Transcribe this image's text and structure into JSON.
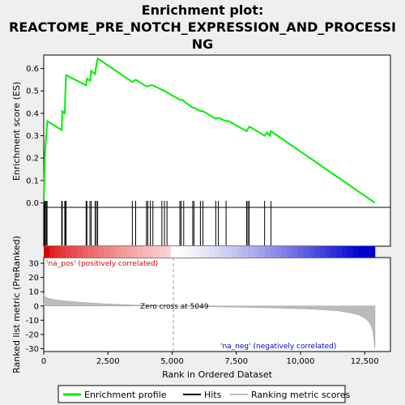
{
  "chart_data": {
    "type": "line",
    "title_lines": [
      "Enrichment plot:",
      "REACTOME_PRE_NOTCH_EXPRESSION_AND_PROCESSI",
      "NG"
    ],
    "top_panel": {
      "ylabel": "Enrichment score (ES)",
      "ylim": [
        -0.02,
        0.66
      ],
      "yticks": [
        "0.0",
        "0.1",
        "0.2",
        "0.3",
        "0.4",
        "0.5",
        "0.6"
      ],
      "ytick_values": [
        0.0,
        0.1,
        0.2,
        0.3,
        0.4,
        0.5,
        0.6
      ],
      "series": {
        "name": "Enrichment profile",
        "color": "#00ee00",
        "x": [
          0,
          40,
          90,
          140,
          700,
          720,
          820,
          840,
          870,
          1650,
          1680,
          1800,
          1850,
          2000,
          2050,
          2100,
          3450,
          3580,
          4000,
          4150,
          4250,
          4600,
          4700,
          5000,
          5300,
          5400,
          5500,
          5800,
          5850,
          6100,
          6200,
          6700,
          6800,
          7000,
          7100,
          7200,
          7900,
          8000,
          8100,
          8600,
          8700,
          8800,
          8850,
          12900
        ],
        "y": [
          0.0,
          0.2,
          0.29,
          0.365,
          0.325,
          0.41,
          0.4,
          0.49,
          0.57,
          0.525,
          0.555,
          0.545,
          0.59,
          0.575,
          0.615,
          0.645,
          0.54,
          0.55,
          0.52,
          0.525,
          0.525,
          0.505,
          0.5,
          0.48,
          0.46,
          0.46,
          0.45,
          0.425,
          0.425,
          0.41,
          0.41,
          0.375,
          0.38,
          0.37,
          0.365,
          0.365,
          0.32,
          0.34,
          0.335,
          0.3,
          0.315,
          0.3,
          0.32,
          0.0
        ]
      }
    },
    "hits": [
      30,
      60,
      100,
      130,
      700,
      720,
      820,
      840,
      870,
      1650,
      1680,
      1800,
      1850,
      2000,
      2050,
      2100,
      3450,
      3580,
      4000,
      4050,
      4150,
      4250,
      4600,
      4700,
      4800,
      5300,
      5350,
      5450,
      5800,
      5850,
      6100,
      6200,
      6700,
      6800,
      7100,
      7900,
      7950,
      8000,
      8600,
      8850
    ],
    "bottom_panel": {
      "ylabel": "Ranked list metric (PreRanked)",
      "xlabel": "Rank in Ordered Dataset",
      "ylim": [
        -32,
        34
      ],
      "yticks": [
        "30",
        "20",
        "10",
        "0",
        "-10",
        "-20",
        "-30"
      ],
      "ytick_values": [
        30,
        20,
        10,
        0,
        -10,
        -20,
        -30
      ],
      "xticks": [
        "0",
        "2,500",
        "5,000",
        "7,500",
        "10,000",
        "12,500"
      ],
      "xtick_values": [
        0,
        2500,
        5000,
        7500,
        10000,
        12500
      ],
      "xlim": [
        0,
        13500
      ],
      "n_genes": 12900,
      "metric_curve": {
        "x": [
          0,
          50,
          200,
          500,
          1000,
          1500,
          2000,
          2500,
          3000,
          3500,
          4000,
          4500,
          5049,
          5500,
          6000,
          7000,
          8000,
          9000,
          10000,
          10500,
          11000,
          11500,
          12000,
          12300,
          12500,
          12650,
          12750,
          12820,
          12860,
          12900
        ],
        "y": [
          8.5,
          6.5,
          5.2,
          4.2,
          3.2,
          2.5,
          1.9,
          1.4,
          1.0,
          0.7,
          0.45,
          0.25,
          0.0,
          -0.2,
          -0.4,
          -0.7,
          -1.0,
          -1.4,
          -1.9,
          -2.3,
          -2.8,
          -3.5,
          -5.0,
          -6.5,
          -8.5,
          -11.0,
          -14.0,
          -18.0,
          -24.0,
          -30.0
        ]
      },
      "zero_cross_label": "Zero cross at 5049",
      "zero_cross": 5049,
      "pos_label": "'na_pos' (positively correlated)",
      "neg_label": "'na_neg' (negatively correlated)",
      "pos_color": "#dd0000",
      "neg_color": "#0000cc"
    },
    "legend": {
      "items": [
        {
          "label": "Enrichment profile",
          "color": "#00ee00"
        },
        {
          "label": "Hits",
          "color": "#000000"
        },
        {
          "label": "Ranking metric scores",
          "color": "#bbbbbb"
        }
      ]
    }
  }
}
